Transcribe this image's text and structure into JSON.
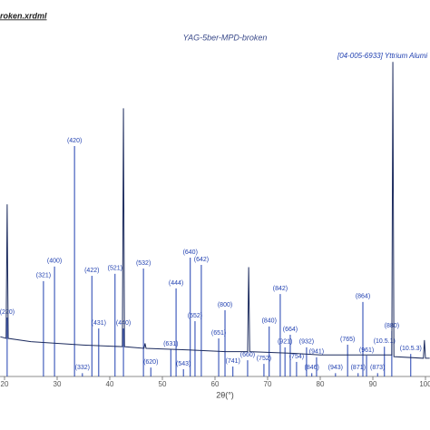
{
  "chart_data": {
    "type": "line",
    "title": "YAG-5ber-MPD-broken",
    "source_file": "roken.xrdml",
    "reference_card": "[04-005-6933] Yttrium Alumi",
    "x_label": "2θ(°)",
    "xlim": [
      19.14,
      100.86
    ],
    "xticks": [
      20,
      30,
      40,
      50,
      60,
      70,
      80,
      90,
      100
    ],
    "ylim": [
      0,
      100
    ],
    "color": "#1c2b5e",
    "x": [
      19.2,
      20.3,
      20.5,
      20.7,
      25,
      35,
      42.4,
      42.6,
      42.8,
      46.5,
      46.7,
      46.9,
      55,
      62,
      66.2,
      66.4,
      66.6,
      75,
      80,
      93.6,
      93.8,
      94.0,
      99.6,
      99.8,
      100.0,
      100.8
    ],
    "values": [
      12,
      11.5,
      52,
      11.5,
      10.5,
      9.5,
      9,
      81,
      9,
      8.5,
      10,
      8.5,
      8,
      7.5,
      7.5,
      33,
      7.5,
      7,
      6.5,
      6.5,
      95,
      6,
      5.5,
      11,
      5.5,
      5.5
    ],
    "reference_peaks": {
      "color": "#1f3fb0",
      "labels": [
        "(220)",
        "(321)",
        "(400)",
        "(420)",
        "(422)",
        "(431)",
        "(332)",
        "(521)",
        "(440)",
        "(532)",
        "(620)",
        "(631)",
        "(444)",
        "(543)",
        "(640)",
        "(552)",
        "(642)",
        "(651)",
        "(800)",
        "(741)",
        "(660)",
        "(752)",
        "(840)",
        "(842)",
        "(921)",
        "(664)",
        "(754)",
        "(932)",
        "(941)",
        "(846)",
        "(943)",
        "(765)",
        "(864)",
        "(961)",
        "(871)",
        "(873)",
        "(880)",
        "(10.5.1)",
        "(10.5.3)"
      ],
      "x": [
        20.5,
        27.4,
        29.5,
        33.3,
        36.6,
        37.9,
        34.8,
        41.0,
        42.6,
        46.4,
        47.8,
        51.6,
        52.6,
        54.0,
        55.3,
        56.2,
        57.4,
        60.7,
        61.9,
        63.4,
        66.2,
        69.3,
        70.3,
        72.4,
        73.3,
        74.3,
        75.5,
        77.4,
        79.3,
        78.4,
        82.9,
        85.2,
        88.1,
        88.8,
        87.2,
        90.9,
        93.6,
        92.2,
        97.2
      ],
      "values": [
        17.8,
        28.8,
        33.2,
        69.6,
        30.4,
        14.5,
        1,
        31,
        14.5,
        32.6,
        2.7,
        8.2,
        26.6,
        2.2,
        35.9,
        16.7,
        33.7,
        11.5,
        20,
        3,
        4.9,
        3.8,
        15.1,
        24.9,
        8.8,
        12.6,
        4.4,
        8.8,
        5.8,
        1,
        1,
        9.6,
        22.5,
        6.3,
        1,
        1,
        13.7,
        9,
        6.8
      ]
    }
  }
}
